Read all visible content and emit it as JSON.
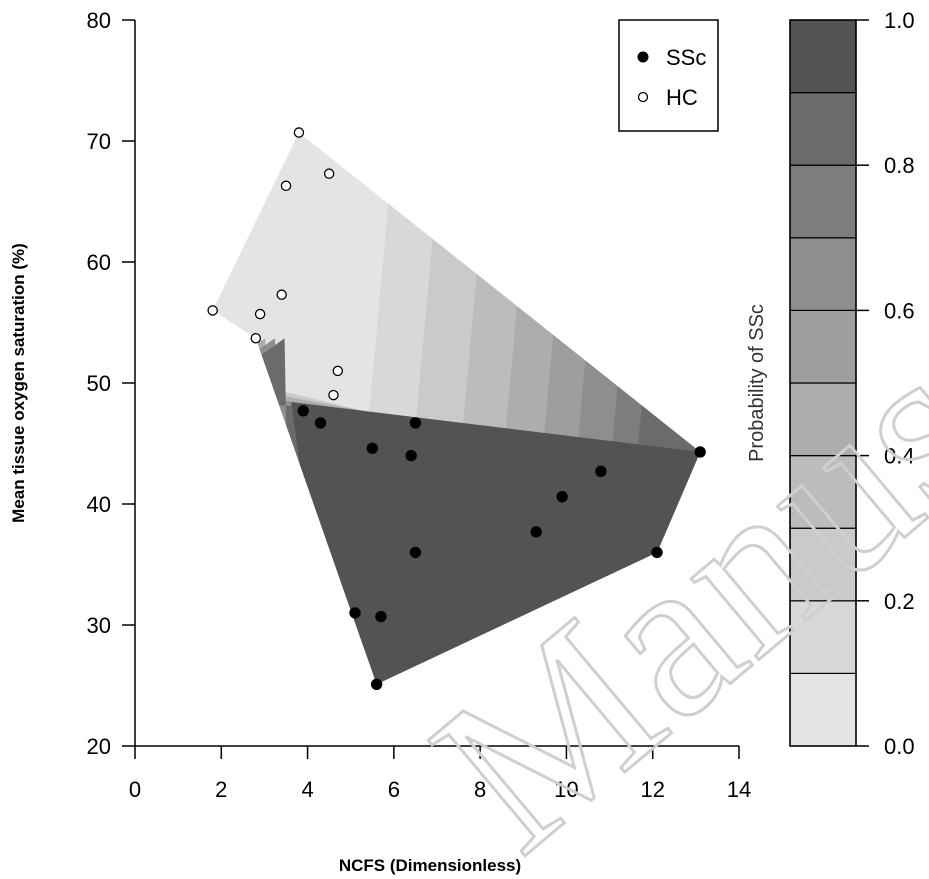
{
  "chart_data": {
    "type": "scatter",
    "xlabel": "NCFS (Dimensionless)",
    "ylabel": "Mean tissue oxygen saturation (%)",
    "xlim": [
      0,
      14
    ],
    "ylim": [
      20,
      80
    ],
    "xticks": [
      "0",
      "2",
      "4",
      "6",
      "8",
      "10",
      "12",
      "14"
    ],
    "yticks": [
      "20",
      "30",
      "40",
      "50",
      "60",
      "70",
      "80"
    ],
    "legend_position": "top-right",
    "series": [
      {
        "name": "SSc",
        "marker": "filled-circle",
        "color": "#000000",
        "points": [
          {
            "x": 3.9,
            "y": 47.7
          },
          {
            "x": 4.3,
            "y": 46.7
          },
          {
            "x": 5.5,
            "y": 44.6
          },
          {
            "x": 6.4,
            "y": 44.0
          },
          {
            "x": 6.5,
            "y": 46.7
          },
          {
            "x": 6.5,
            "y": 36.0
          },
          {
            "x": 5.1,
            "y": 31.0
          },
          {
            "x": 5.7,
            "y": 30.7
          },
          {
            "x": 5.6,
            "y": 25.1
          },
          {
            "x": 9.3,
            "y": 37.7
          },
          {
            "x": 9.9,
            "y": 40.6
          },
          {
            "x": 10.8,
            "y": 42.7
          },
          {
            "x": 12.1,
            "y": 36.0
          },
          {
            "x": 13.1,
            "y": 44.3
          }
        ]
      },
      {
        "name": "HC",
        "marker": "open-circle",
        "color": "#000000",
        "points": [
          {
            "x": 3.8,
            "y": 70.7
          },
          {
            "x": 3.5,
            "y": 66.3
          },
          {
            "x": 4.5,
            "y": 67.3
          },
          {
            "x": 3.4,
            "y": 57.3
          },
          {
            "x": 1.8,
            "y": 56.0
          },
          {
            "x": 2.9,
            "y": 55.7
          },
          {
            "x": 2.8,
            "y": 53.7
          },
          {
            "x": 4.7,
            "y": 51.0
          },
          {
            "x": 4.6,
            "y": 49.0
          }
        ]
      }
    ],
    "probability_surface": {
      "hull": [
        {
          "x": 3.8,
          "y": 70.7
        },
        {
          "x": 1.8,
          "y": 56.0
        },
        {
          "x": 2.8,
          "y": 53.7
        },
        {
          "x": 5.6,
          "y": 25.1
        },
        {
          "x": 12.1,
          "y": 36.0
        },
        {
          "x": 13.1,
          "y": 44.3
        }
      ],
      "boundary": {
        "x1": 3.9,
        "y1": 48.3,
        "x2": 13.1,
        "y2": 44.3
      }
    },
    "colorbar": {
      "label": "Probability of SSc",
      "range": [
        0,
        1
      ],
      "ticks": [
        "0.0",
        "0.2",
        "0.4",
        "0.6",
        "0.8",
        "1.0"
      ],
      "levels": [
        "#e4e4e4",
        "#d8d8d8",
        "#cacaca",
        "#bcbcbc",
        "#adadad",
        "#9e9e9e",
        "#8e8e8e",
        "#7d7d7d",
        "#6b6b6b",
        "#535353"
      ]
    },
    "watermark": "Manus"
  }
}
